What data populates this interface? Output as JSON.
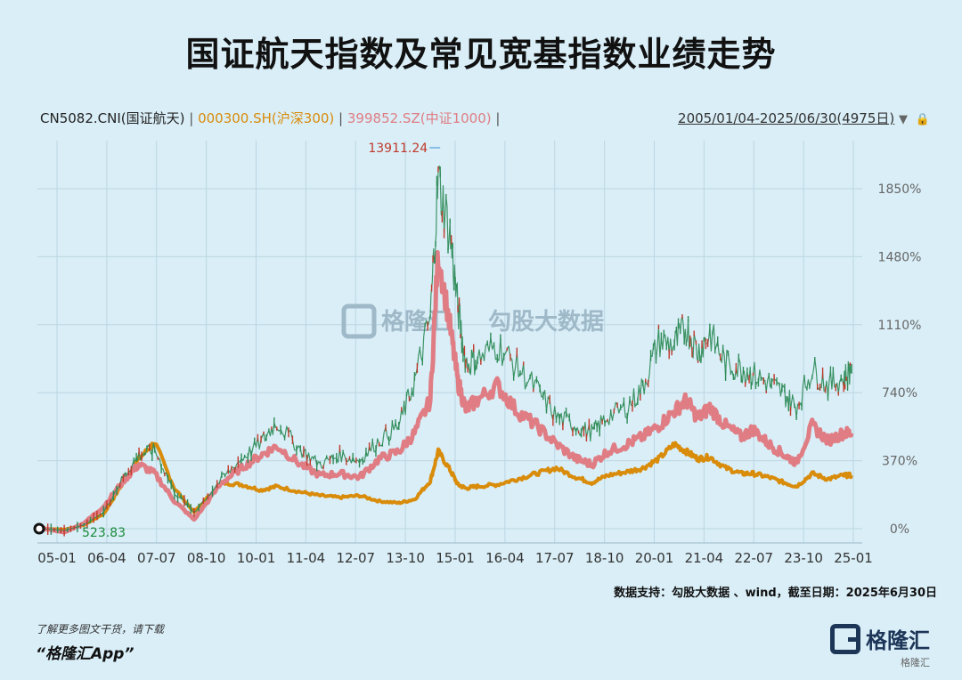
{
  "title": "国证航天指数及常见宽基指数业绩走势",
  "legend": {
    "items": [
      {
        "label": "CN5082.CNI(国证航天)",
        "color": "#222222"
      },
      {
        "label": "000300.SH(沪深300)",
        "color": "#d98b0a"
      },
      {
        "label": "399852.SZ(中证1000)",
        "color": "#e07d84"
      }
    ],
    "separator": "|"
  },
  "date_range": "2005/01/04-2025/06/30(4975日)",
  "source": "数据支持：勾股大数据 、wind，截至日期：2025年6月30日",
  "footer": {
    "note": "了解更多图文干货，请下载",
    "app": "“格隆汇App”"
  },
  "brand": {
    "name": "格隆汇",
    "sub": "格隆汇"
  },
  "watermark": {
    "left": "格隆汇",
    "right": "勾股大数据"
  },
  "colors": {
    "background": "#d9eef7",
    "aerospace": "#2e8b57",
    "aerospace_down": "#c0392b",
    "hs300": "#d98b0a",
    "csi1000": "#e07d84",
    "grid": "#bcd6e2"
  },
  "chart_data": {
    "type": "line",
    "title": "国证航天指数及常见宽基指数业绩走势",
    "x_ticks": [
      "05-01",
      "06-04",
      "07-07",
      "08-10",
      "10-01",
      "11-04",
      "12-07",
      "13-10",
      "15-01",
      "16-04",
      "17-07",
      "18-10",
      "20-01",
      "21-04",
      "22-07",
      "23-10",
      "25-01"
    ],
    "y_ticks": [
      "0%",
      "370%",
      "740%",
      "1110%",
      "1480%",
      "1850%"
    ],
    "ylim": [
      -50,
      2050
    ],
    "xlim": [
      2005.0,
      2025.5
    ],
    "annotations": {
      "max_label": "13911.24",
      "min_label": "523.83"
    },
    "series": [
      {
        "name": "CN5082.CNI(国证航天)",
        "x": [
          2005.0,
          2005.5,
          2006.0,
          2006.5,
          2007.0,
          2007.4,
          2007.8,
          2008.3,
          2008.8,
          2009.5,
          2010.0,
          2010.5,
          2010.9,
          2011.5,
          2012.0,
          2012.5,
          2013.0,
          2013.5,
          2014.0,
          2014.4,
          2014.8,
          2015.0,
          2015.3,
          2015.5,
          2015.7,
          2016.0,
          2016.5,
          2017.0,
          2017.5,
          2018.0,
          2018.5,
          2018.9,
          2019.3,
          2019.8,
          2020.2,
          2020.6,
          2021.0,
          2021.3,
          2021.6,
          2021.9,
          2022.3,
          2022.7,
          2023.0,
          2023.4,
          2023.8,
          2024.1,
          2024.5,
          2024.9,
          2025.3,
          2025.5
        ],
        "y": [
          0,
          -10,
          20,
          90,
          280,
          400,
          430,
          200,
          90,
          270,
          380,
          470,
          580,
          430,
          350,
          400,
          370,
          480,
          560,
          800,
          1150,
          1900,
          1600,
          1200,
          900,
          920,
          1000,
          880,
          760,
          610,
          560,
          520,
          610,
          660,
          770,
          1020,
          1000,
          1100,
          960,
          1060,
          900,
          870,
          840,
          790,
          730,
          660,
          870,
          780,
          820,
          870
        ]
      },
      {
        "name": "000300.SH(沪深300)",
        "x": [
          2005.0,
          2005.5,
          2006.0,
          2006.5,
          2007.0,
          2007.4,
          2007.8,
          2008.3,
          2008.8,
          2009.5,
          2010.0,
          2010.5,
          2010.9,
          2011.5,
          2012.0,
          2012.5,
          2013.0,
          2013.5,
          2014.0,
          2014.4,
          2014.8,
          2015.0,
          2015.3,
          2015.5,
          2015.7,
          2016.0,
          2016.5,
          2017.0,
          2017.5,
          2018.0,
          2018.5,
          2018.9,
          2019.3,
          2019.8,
          2020.2,
          2020.6,
          2021.0,
          2021.3,
          2021.6,
          2021.9,
          2022.3,
          2022.7,
          2023.0,
          2023.4,
          2023.8,
          2024.1,
          2024.5,
          2024.9,
          2025.3,
          2025.5
        ],
        "y": [
          0,
          -5,
          20,
          80,
          250,
          380,
          470,
          220,
          90,
          250,
          240,
          210,
          230,
          200,
          180,
          170,
          180,
          150,
          140,
          160,
          260,
          420,
          320,
          240,
          220,
          230,
          240,
          270,
          300,
          330,
          280,
          250,
          290,
          310,
          330,
          380,
          460,
          420,
          380,
          390,
          330,
          300,
          300,
          280,
          250,
          230,
          300,
          270,
          290,
          290
        ]
      },
      {
        "name": "399852.SZ(中证1000)",
        "x": [
          2005.0,
          2005.5,
          2006.0,
          2006.5,
          2007.0,
          2007.4,
          2007.8,
          2008.3,
          2008.8,
          2009.5,
          2010.0,
          2010.5,
          2010.9,
          2011.5,
          2012.0,
          2012.5,
          2013.0,
          2013.5,
          2014.0,
          2014.4,
          2014.8,
          2015.0,
          2015.3,
          2015.5,
          2015.7,
          2016.0,
          2016.5,
          2017.0,
          2017.5,
          2018.0,
          2018.5,
          2018.9,
          2019.3,
          2019.8,
          2020.2,
          2020.6,
          2021.0,
          2021.3,
          2021.6,
          2021.9,
          2022.3,
          2022.7,
          2023.0,
          2023.4,
          2023.8,
          2024.1,
          2024.5,
          2024.9,
          2025.3,
          2025.5
        ],
        "y": [
          0,
          -20,
          30,
          120,
          260,
          350,
          300,
          150,
          50,
          250,
          330,
          400,
          450,
          350,
          290,
          300,
          280,
          380,
          420,
          520,
          700,
          1500,
          1100,
          800,
          650,
          700,
          780,
          640,
          560,
          460,
          380,
          350,
          420,
          460,
          500,
          560,
          640,
          700,
          600,
          660,
          560,
          500,
          540,
          460,
          400,
          360,
          560,
          480,
          520,
          520
        ]
      }
    ]
  }
}
